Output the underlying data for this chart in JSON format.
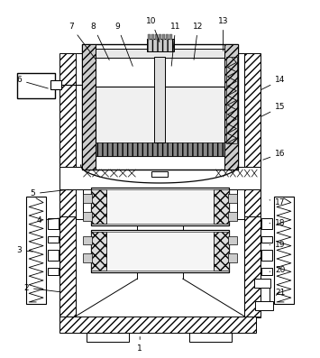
{
  "background": "#ffffff",
  "figsize": [
    3.55,
    3.97
  ],
  "dpi": 100,
  "annotations": [
    [
      "1",
      155,
      388,
      155,
      372
    ],
    [
      "2",
      28,
      320,
      68,
      325
    ],
    [
      "3",
      20,
      278,
      38,
      280
    ],
    [
      "4",
      42,
      245,
      68,
      242
    ],
    [
      "5",
      35,
      215,
      78,
      210
    ],
    [
      "6",
      20,
      88,
      55,
      98
    ],
    [
      "7",
      78,
      28,
      108,
      68
    ],
    [
      "8",
      103,
      28,
      122,
      68
    ],
    [
      "9",
      130,
      28,
      148,
      75
    ],
    [
      "10",
      168,
      22,
      178,
      48
    ],
    [
      "11",
      195,
      28,
      190,
      75
    ],
    [
      "12",
      220,
      28,
      215,
      68
    ],
    [
      "13",
      248,
      22,
      248,
      58
    ],
    [
      "14",
      312,
      88,
      288,
      100
    ],
    [
      "15",
      312,
      118,
      288,
      130
    ],
    [
      "16",
      312,
      170,
      290,
      178
    ],
    [
      "17",
      312,
      225,
      300,
      222
    ],
    [
      "18",
      312,
      248,
      300,
      248
    ],
    [
      "19",
      312,
      272,
      300,
      272
    ],
    [
      "20",
      312,
      300,
      300,
      302
    ],
    [
      "21",
      312,
      325,
      305,
      330
    ]
  ]
}
